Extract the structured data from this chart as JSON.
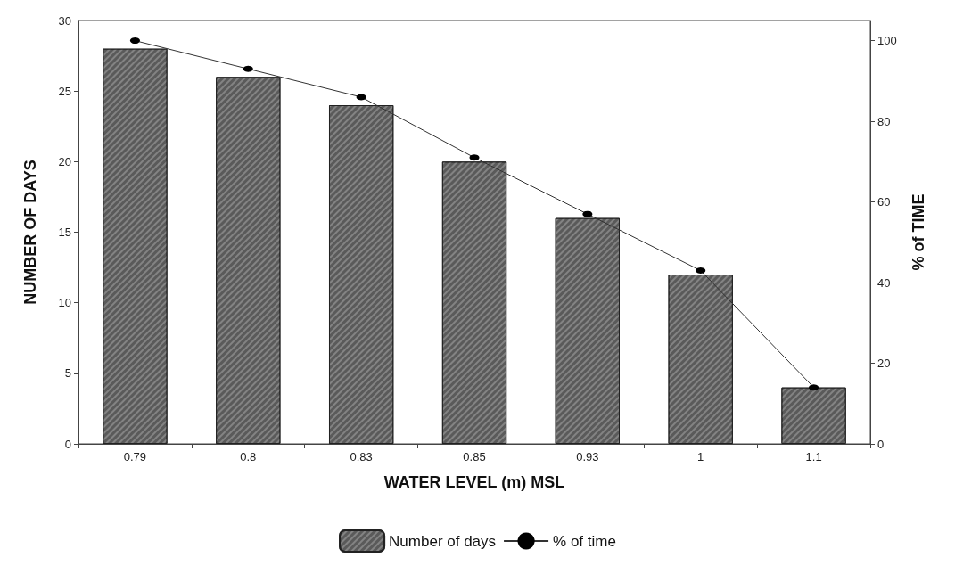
{
  "chart_data": {
    "type": "bar",
    "xlabel": "WATER LEVEL (m) MSL",
    "ylabel": "NUMBER OF DAYS",
    "y2label": "% of TIME",
    "categories": [
      "0.79",
      "0.8",
      "0.83",
      "0.85",
      "0.93",
      "1",
      "1.1"
    ],
    "series": [
      {
        "name": "Number of days",
        "color": "#5a5a5a",
        "values": [
          28,
          26,
          24,
          20,
          16,
          12,
          4
        ]
      },
      {
        "name": "% of time",
        "type": "line",
        "axis": "y2",
        "color": "#333333",
        "marker": "circle",
        "line_style": "solid",
        "values": [
          100,
          93,
          86,
          71,
          57,
          43,
          14
        ]
      }
    ],
    "ylim": [
      0,
      30
    ],
    "yticks": [
      0,
      5,
      10,
      15,
      20,
      25,
      30
    ],
    "y2lim": [
      0,
      105
    ],
    "y2ticks": [
      0,
      20,
      40,
      60,
      80,
      100
    ],
    "grid": false,
    "legend": "bottom"
  }
}
